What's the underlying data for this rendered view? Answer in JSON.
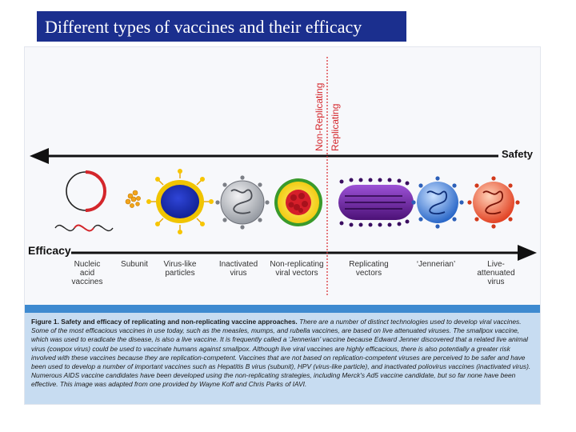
{
  "slide": {
    "title": "Different types of vaccines and their efficacy"
  },
  "diagram": {
    "safety_label": "Safety",
    "efficacy_label": "Efficacy",
    "non_replicating_label": "Non-Replicating",
    "replicating_label": "Replicating",
    "types": [
      {
        "label": "Nucleic acid vaccines"
      },
      {
        "label": "Subunit"
      },
      {
        "label": "Virus-like particles"
      },
      {
        "label": "Inactivated virus"
      },
      {
        "label": "Non-replicating viral vectors"
      },
      {
        "label": "Replicating vectors"
      },
      {
        "label": "‘Jennerian’"
      },
      {
        "label": "Live-attenuated virus"
      }
    ],
    "colors": {
      "arrow": "#111111",
      "red": "#d4262b",
      "purple": "#6a1f9a",
      "blue": "#2a6fd1",
      "grey": "#8f949c",
      "orange": "#e5461e"
    }
  },
  "caption": {
    "heading": "Figure 1. Safety and efficacy of replicating and non-replicating vaccine approaches.",
    "body": "There are a number of distinct technologies used to develop viral vaccines. Some of the most efficacious vaccines in use today, such as the measles, mumps, and rubella vaccines, are based on live attenuated viruses. The smallpox vaccine, which was used to eradicate the disease, is also a live vaccine. It is frequently called a ‘Jennerian’ vaccine because Edward Jenner discovered that a related live animal virus (cowpox virus) could be used to vaccinate humans against smallpox. Although live viral vaccines are highly efficacious, there is also potentially a greater risk involved with these vaccines because they are replication-competent. Vaccines that are not based on replication-competent viruses are perceived to be safer and have been used to develop a number of important vaccines such as Hepatitis B virus (subunit), HPV (virus-like particle), and inactivated poliovirus vaccines (inactivated virus). Numerous AIDS vaccine candidates have been developed using the non-replicating strategies, including Merck's Ad5 vaccine candidate, but so far none have been effective. This image was adapted from one provided by Wayne Koff and Chris Parks of IAVI."
  }
}
